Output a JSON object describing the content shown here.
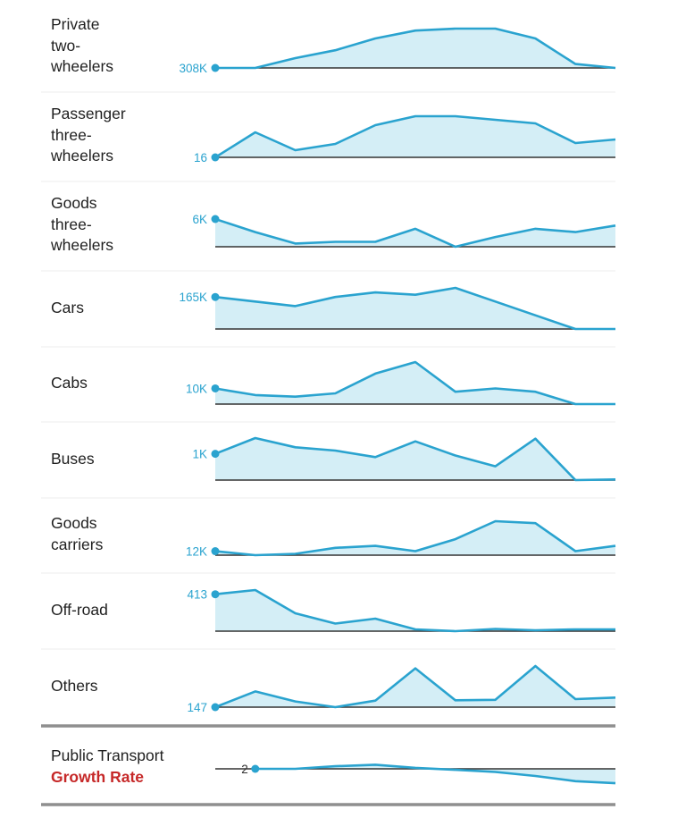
{
  "chart_data": {
    "type": "area",
    "colors": {
      "line": "#2aa3cf",
      "fill": "#d4eef6",
      "baseline": "#333333",
      "separator": "#eeeeee",
      "rule": "#8f8f8f",
      "accent": "#c62828"
    },
    "rows": [
      {
        "label": "Private two-wheelers",
        "label_lines": [
          "Private",
          "two-",
          "wheelers"
        ],
        "start_label": "308K",
        "values": [
          308,
          308,
          313,
          317,
          323,
          327,
          328,
          328,
          323,
          310,
          308
        ]
      },
      {
        "label": "Passenger three-wheelers",
        "label_lines": [
          "Passenger",
          "three-",
          "wheelers"
        ],
        "start_label": "16",
        "values": [
          16,
          44,
          24,
          31,
          52,
          62,
          62,
          58,
          54,
          32,
          36
        ]
      },
      {
        "label": "Goods three-wheelers",
        "label_lines": [
          "Goods",
          "three-",
          "wheelers"
        ],
        "start_label": "6K",
        "values": [
          6.0,
          5.2,
          4.5,
          4.6,
          4.6,
          5.4,
          4.3,
          4.9,
          5.4,
          5.2,
          5.6
        ]
      },
      {
        "label": "Cars",
        "label_lines": [
          "Cars"
        ],
        "start_label": "165K",
        "values": [
          165,
          164,
          163,
          165,
          166,
          165.5,
          167,
          164,
          161,
          158,
          158
        ]
      },
      {
        "label": "Cabs",
        "label_lines": [
          "Cabs"
        ],
        "start_label": "10K",
        "values": [
          10,
          6,
          5,
          7,
          19,
          26,
          8,
          10,
          8,
          0.5,
          0.5
        ]
      },
      {
        "label": "Buses",
        "label_lines": [
          "Buses"
        ],
        "start_label": "1K",
        "values": [
          1000,
          1480,
          1200,
          1100,
          900,
          1380,
          950,
          620,
          1460,
          200,
          220
        ]
      },
      {
        "label": "Goods carriers",
        "label_lines": [
          "Goods",
          "carriers"
        ],
        "start_label": "12K",
        "values": [
          12.0,
          11.4,
          11.6,
          12.5,
          12.8,
          12.0,
          13.8,
          16.5,
          16.2,
          12.0,
          12.8
        ]
      },
      {
        "label": "Off-road",
        "label_lines": [
          "Off-road"
        ],
        "start_label": "413",
        "values": [
          413,
          460,
          200,
          85,
          140,
          20,
          0,
          25,
          10,
          20,
          20
        ]
      },
      {
        "label": "Others",
        "label_lines": [
          "Others"
        ],
        "start_label": "147",
        "values": [
          147,
          188,
          162,
          147,
          164,
          248,
          165,
          166,
          254,
          168,
          172
        ]
      }
    ],
    "growth": {
      "label_line1": "Public Transport",
      "label_line2": "Growth Rate",
      "start_label": "2",
      "values": [
        null,
        2,
        2,
        4.5,
        6,
        3,
        1,
        -1,
        -5,
        -10,
        -12
      ],
      "zero_value": 2,
      "min": -12,
      "max": 6
    }
  }
}
